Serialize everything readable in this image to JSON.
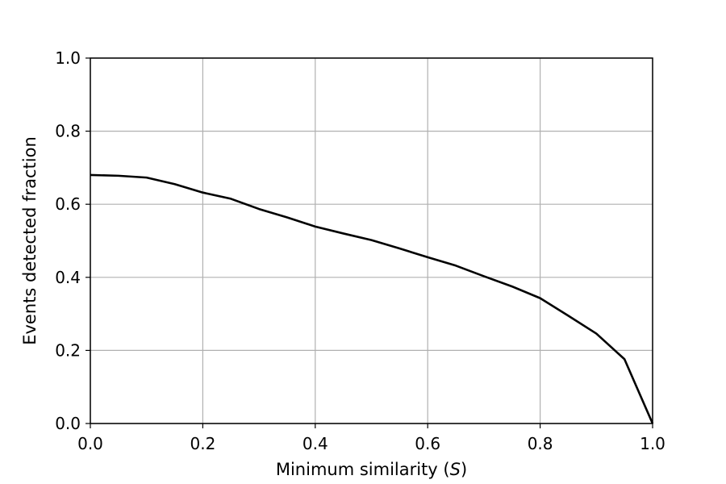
{
  "chart_data": {
    "type": "line",
    "title": "",
    "xlabel": "Minimum  similarity (",
    "xlabel_symbol": "S",
    "xlabel_suffix": ")",
    "ylabel": "Events detected fraction",
    "xlim": [
      0.0,
      1.0
    ],
    "ylim": [
      0.0,
      1.0
    ],
    "xticks": [
      0.0,
      0.2,
      0.4,
      0.6,
      0.8,
      1.0
    ],
    "yticks": [
      0.0,
      0.2,
      0.4,
      0.6,
      0.8,
      1.0
    ],
    "xtick_labels": [
      "0.0",
      "0.2",
      "0.4",
      "0.6",
      "0.8",
      "1.0"
    ],
    "ytick_labels": [
      "0.0",
      "0.2",
      "0.4",
      "0.6",
      "0.8",
      "1.0"
    ],
    "grid": true,
    "series": [
      {
        "color": "#000000",
        "x": [
          0.0,
          0.05,
          0.1,
          0.15,
          0.2,
          0.25,
          0.3,
          0.35,
          0.4,
          0.45,
          0.5,
          0.55,
          0.6,
          0.65,
          0.7,
          0.75,
          0.8,
          0.85,
          0.9,
          0.95,
          1.0
        ],
        "y": [
          0.68,
          0.678,
          0.673,
          0.655,
          0.632,
          0.615,
          0.587,
          0.564,
          0.539,
          0.52,
          0.502,
          0.479,
          0.455,
          0.432,
          0.403,
          0.375,
          0.343,
          0.295,
          0.246,
          0.176,
          0.0
        ]
      }
    ]
  }
}
